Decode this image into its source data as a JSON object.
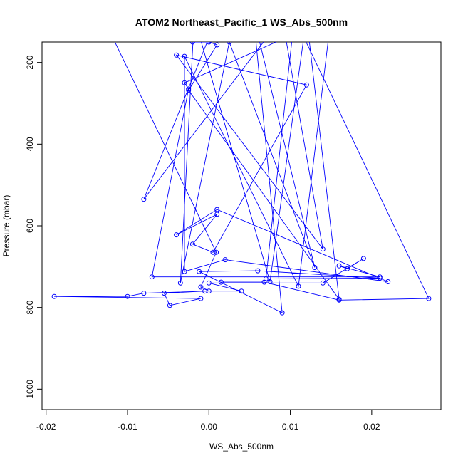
{
  "chart_data": {
    "type": "line",
    "title": "ATOM2 Northeast_Pacific_1 WS_Abs_500nm",
    "xlabel": "WS_Abs_500nm",
    "ylabel": "Pressure (mbar)",
    "xlim": [
      -0.0205,
      0.0285
    ],
    "ylim": [
      1050,
      150
    ],
    "y_reversed": true,
    "x_ticks": [
      -0.02,
      -0.01,
      0.0,
      0.01,
      0.02
    ],
    "x_tick_labels": [
      "-0.02",
      "-0.01",
      "0.00",
      "0.01",
      "0.02"
    ],
    "y_ticks": [
      200,
      400,
      600,
      800,
      1000
    ],
    "y_tick_labels": [
      "200",
      "400",
      "600",
      "800",
      "1000"
    ],
    "grid": false,
    "legend": "none",
    "series": [
      {
        "color": "#0000ff",
        "marker": "open-circle",
        "points": [
          [
            -0.013,
            0
          ],
          [
            0.0009,
            665
          ],
          [
            -0.001,
            750
          ],
          [
            0.0,
            760
          ],
          [
            -0.008,
            765
          ],
          [
            -0.01,
            773
          ],
          [
            -0.019,
            773
          ],
          [
            -0.001,
            778
          ],
          [
            -0.0048,
            795
          ],
          [
            -0.0055,
            765
          ],
          [
            -0.0005,
            760
          ],
          [
            0.004,
            760
          ],
          [
            0.0,
            740
          ],
          [
            0.014,
            740
          ],
          [
            0.019,
            680
          ],
          [
            0.017,
            705
          ],
          [
            0.016,
            698
          ],
          [
            0.021,
            725
          ],
          [
            -0.007,
            725
          ],
          [
            -0.0025,
            265
          ],
          [
            -0.003,
            250
          ],
          [
            0.015,
            0
          ],
          [
            0.011,
            748
          ],
          [
            -0.003,
            185
          ],
          [
            -0.003,
            712
          ],
          [
            0.002,
            683
          ],
          [
            0.022,
            737
          ],
          [
            0.001,
            560
          ],
          [
            -0.004,
            622
          ],
          [
            0.001,
            572
          ],
          [
            -0.002,
            645
          ],
          [
            0.0005,
            665
          ],
          [
            0.012,
            255
          ],
          [
            -0.004,
            182
          ],
          [
            0.014,
            657
          ],
          [
            0.009,
            0
          ],
          [
            -0.008,
            535
          ],
          [
            0.001,
            0
          ],
          [
            -0.002,
            150
          ],
          [
            0.0,
            150
          ],
          [
            0.001,
            157
          ],
          [
            -0.0025,
            268
          ],
          [
            0.016,
            780
          ],
          [
            0.012,
            0
          ],
          [
            0.0075,
            737
          ],
          [
            -0.0018,
            0
          ],
          [
            -0.0035,
            740
          ],
          [
            0.0025,
            150
          ],
          [
            0.013,
            702
          ],
          [
            0.0055,
            0
          ],
          [
            0.009,
            813
          ],
          [
            -0.0012,
            712
          ],
          [
            0.006,
            710
          ],
          [
            0.021,
            728
          ],
          [
            0.007,
            730
          ],
          [
            0.0105,
            0
          ],
          [
            0.027,
            778
          ],
          [
            0.016,
            782
          ],
          [
            0.0068,
            738
          ],
          [
            0.0015,
            738
          ]
        ]
      }
    ]
  }
}
